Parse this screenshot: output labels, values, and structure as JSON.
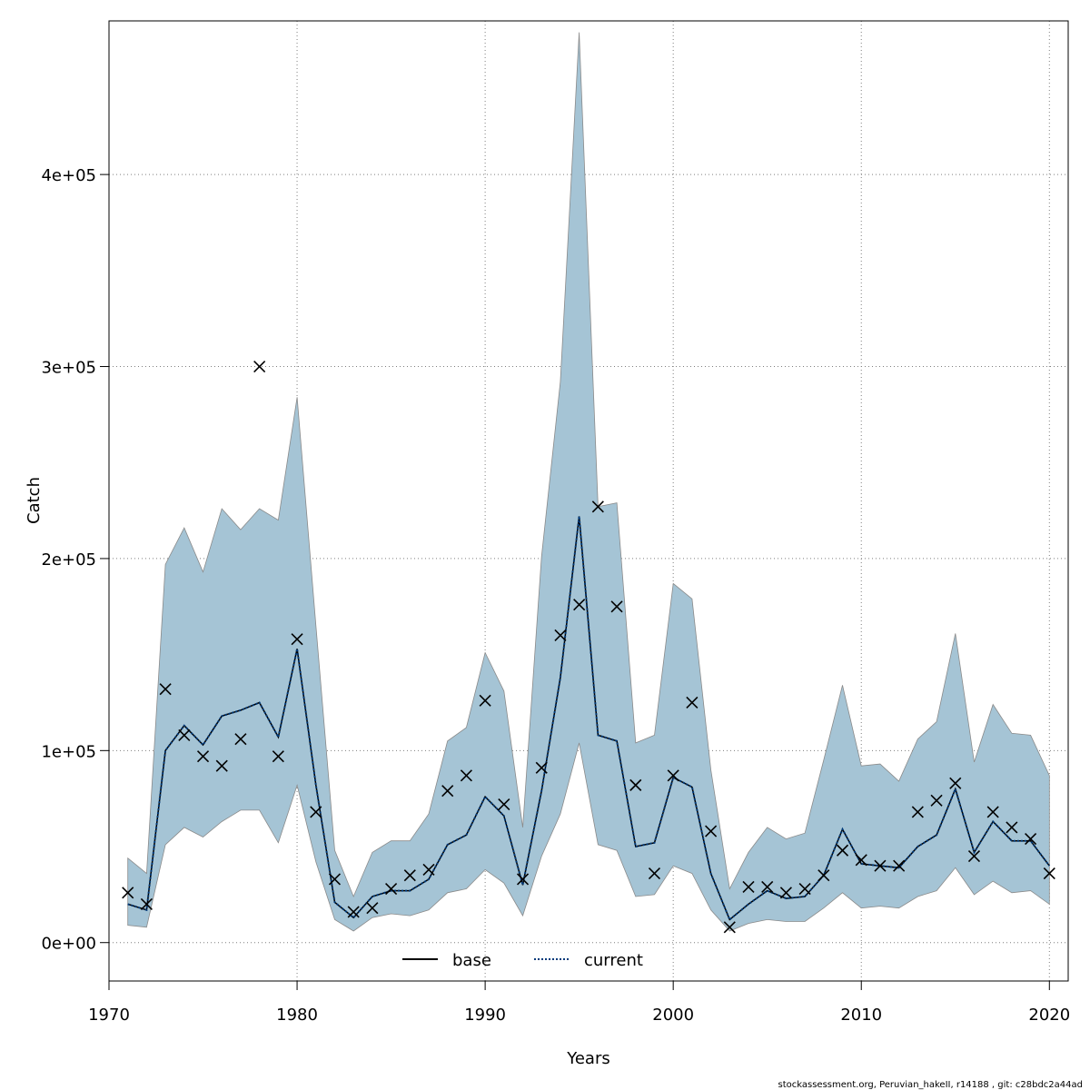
{
  "chart_data": {
    "type": "line",
    "title": "",
    "xlabel": "Years",
    "ylabel": "Catch",
    "xlim": [
      1970,
      2021
    ],
    "ylim": [
      -20000,
      480000
    ],
    "x_ticks": [
      1970,
      1980,
      1990,
      2000,
      2010,
      2020
    ],
    "y_ticks": [
      0,
      100000,
      200000,
      300000,
      400000
    ],
    "y_tick_labels": [
      "0e+00",
      "1e+05",
      "2e+05",
      "3e+05",
      "4e+05"
    ],
    "grid": true,
    "legend_position": "bottom",
    "colors": {
      "band": "#a5c4d5",
      "band_edge": "#8a8a8a",
      "base": "#000000",
      "current": "#003a7a",
      "grid": "#7f7f7f"
    },
    "x": [
      1971,
      1972,
      1973,
      1974,
      1975,
      1976,
      1977,
      1978,
      1979,
      1980,
      1981,
      1982,
      1983,
      1984,
      1985,
      1986,
      1987,
      1988,
      1989,
      1990,
      1991,
      1992,
      1993,
      1994,
      1995,
      1996,
      1997,
      1998,
      1999,
      2000,
      2001,
      2002,
      2003,
      2004,
      2005,
      2006,
      2007,
      2008,
      2009,
      2010,
      2011,
      2012,
      2013,
      2014,
      2015,
      2016,
      2017,
      2018,
      2019,
      2020
    ],
    "series": [
      {
        "name": "base",
        "style": "solid",
        "values": [
          20000,
          17000,
          100000,
          113000,
          103000,
          118000,
          121000,
          125000,
          107000,
          153000,
          82000,
          21000,
          13000,
          24000,
          27000,
          27000,
          33000,
          51000,
          56000,
          76000,
          66000,
          30000,
          79000,
          138000,
          222000,
          108000,
          105000,
          50000,
          52000,
          86000,
          81000,
          36000,
          12000,
          20000,
          27000,
          23000,
          24000,
          35000,
          59000,
          41000,
          40000,
          39000,
          50000,
          56000,
          80000,
          47000,
          63000,
          53000,
          53000,
          40000
        ]
      },
      {
        "name": "current",
        "style": "dotted",
        "values": [
          20000,
          17000,
          100000,
          113000,
          103000,
          118000,
          121000,
          125000,
          107000,
          153000,
          82000,
          21000,
          13000,
          24000,
          27000,
          27000,
          33000,
          51000,
          56000,
          76000,
          66000,
          30000,
          79000,
          138000,
          222000,
          108000,
          105000,
          50000,
          52000,
          86000,
          81000,
          36000,
          12000,
          20000,
          27000,
          23000,
          24000,
          35000,
          59000,
          41000,
          40000,
          39000,
          50000,
          56000,
          80000,
          47000,
          63000,
          53000,
          53000,
          40000
        ]
      },
      {
        "name": "",
        "type": "band",
        "upper": [
          44000,
          36000,
          197000,
          216000,
          193000,
          226000,
          215000,
          226000,
          220000,
          284000,
          165000,
          48000,
          24000,
          47000,
          53000,
          53000,
          67000,
          105000,
          112000,
          151000,
          131000,
          60000,
          201000,
          292000,
          474000,
          227000,
          229000,
          104000,
          108000,
          187000,
          179000,
          90000,
          28000,
          47000,
          60000,
          54000,
          57000,
          95000,
          134000,
          92000,
          93000,
          84000,
          106000,
          115000,
          161000,
          94000,
          124000,
          109000,
          108000,
          87000
        ]
      },
      {
        "name": "",
        "type": "band",
        "lower": [
          9000,
          8000,
          51000,
          60000,
          55000,
          63000,
          69000,
          69000,
          52000,
          82000,
          42000,
          12000,
          6000,
          13000,
          15000,
          14000,
          17000,
          26000,
          28000,
          38000,
          31000,
          14000,
          45000,
          67000,
          104000,
          51000,
          48000,
          24000,
          25000,
          40000,
          36000,
          17000,
          6000,
          10000,
          12000,
          11000,
          11000,
          18000,
          26000,
          18000,
          19000,
          18000,
          24000,
          27000,
          39000,
          25000,
          32000,
          26000,
          27000,
          20000
        ]
      },
      {
        "name": "",
        "type": "observed",
        "marker": "x",
        "values": [
          26000,
          20000,
          132000,
          108000,
          97000,
          92000,
          106000,
          300000,
          97000,
          158000,
          68000,
          33000,
          16000,
          18000,
          28000,
          35000,
          38000,
          79000,
          87000,
          126000,
          72000,
          33000,
          91000,
          160000,
          176000,
          227000,
          175000,
          82000,
          36000,
          87000,
          125000,
          58000,
          8000,
          29000,
          29000,
          26000,
          28000,
          35000,
          48000,
          43000,
          40000,
          40000,
          68000,
          74000,
          83000,
          45000,
          68000,
          60000,
          54000,
          36000
        ]
      }
    ]
  },
  "footer": {
    "note": "stockassessment.org, Peruvian_hakeII, r14188 , git: c28bdc2a44ad"
  }
}
